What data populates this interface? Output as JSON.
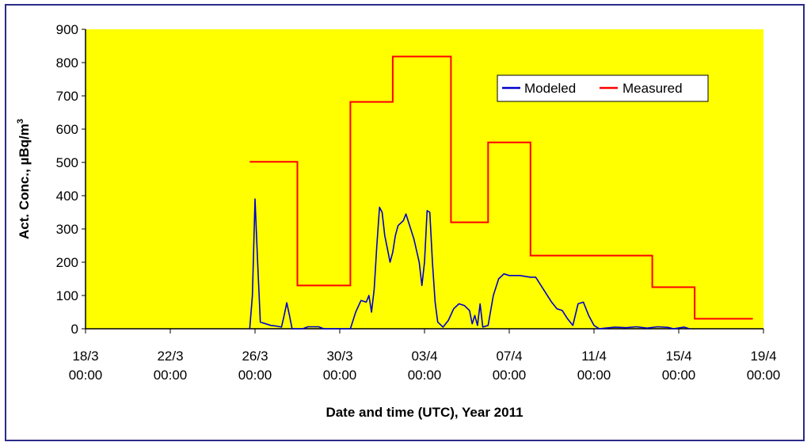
{
  "chart_data": {
    "type": "line",
    "title": "",
    "xlabel": "Date and time (UTC), Year 2011",
    "ylabel": "Act. Conc., µBq/m",
    "ylabel_superscript": "3",
    "ylim": [
      0,
      900
    ],
    "yticks": [
      0,
      100,
      200,
      300,
      400,
      500,
      600,
      700,
      800,
      900
    ],
    "xlim": [
      "2011-03-18 00:00",
      "2011-04-19 00:00"
    ],
    "xticks": [
      {
        "date": "2011-03-18",
        "line1": "18/3",
        "line2": "00:00"
      },
      {
        "date": "2011-03-22",
        "line1": "22/3",
        "line2": "00:00"
      },
      {
        "date": "2011-03-26",
        "line1": "26/3",
        "line2": "00:00"
      },
      {
        "date": "2011-03-30",
        "line1": "30/3",
        "line2": "00:00"
      },
      {
        "date": "2011-04-03",
        "line1": "03/4",
        "line2": "00:00"
      },
      {
        "date": "2011-04-07",
        "line1": "07/4",
        "line2": "00:00"
      },
      {
        "date": "2011-04-11",
        "line1": "11/4",
        "line2": "00:00"
      },
      {
        "date": "2011-04-15",
        "line1": "15/4",
        "line2": "00:00"
      },
      {
        "date": "2011-04-19",
        "line1": "19/4",
        "line2": "00:00"
      }
    ],
    "grid": false,
    "legend_position": "top-right",
    "plot_background": "#ffff00",
    "series": [
      {
        "name": "Modeled",
        "color": "#0000cc",
        "points": [
          [
            "2011-03-25 18:00",
            0
          ],
          [
            "2011-03-25 21:00",
            100
          ],
          [
            "2011-03-26 00:00",
            390
          ],
          [
            "2011-03-26 03:00",
            200
          ],
          [
            "2011-03-26 06:00",
            20
          ],
          [
            "2011-03-26 12:00",
            15
          ],
          [
            "2011-03-26 18:00",
            10
          ],
          [
            "2011-03-27 00:00",
            8
          ],
          [
            "2011-03-27 06:00",
            5
          ],
          [
            "2011-03-27 09:00",
            40
          ],
          [
            "2011-03-27 12:00",
            78
          ],
          [
            "2011-03-27 15:00",
            40
          ],
          [
            "2011-03-27 18:00",
            0
          ],
          [
            "2011-03-28 06:00",
            0
          ],
          [
            "2011-03-28 12:00",
            6
          ],
          [
            "2011-03-29 00:00",
            6
          ],
          [
            "2011-03-29 06:00",
            0
          ],
          [
            "2011-03-30 12:00",
            0
          ],
          [
            "2011-03-30 18:00",
            50
          ],
          [
            "2011-03-31 00:00",
            85
          ],
          [
            "2011-03-31 06:00",
            80
          ],
          [
            "2011-03-31 09:00",
            100
          ],
          [
            "2011-03-31 12:00",
            50
          ],
          [
            "2011-03-31 15:00",
            120
          ],
          [
            "2011-03-31 18:00",
            250
          ],
          [
            "2011-03-31 21:00",
            365
          ],
          [
            "2011-04-01 00:00",
            350
          ],
          [
            "2011-04-01 03:00",
            280
          ],
          [
            "2011-04-01 06:00",
            240
          ],
          [
            "2011-04-01 09:00",
            200
          ],
          [
            "2011-04-01 12:00",
            230
          ],
          [
            "2011-04-01 15:00",
            280
          ],
          [
            "2011-04-01 18:00",
            310
          ],
          [
            "2011-04-02 00:00",
            325
          ],
          [
            "2011-04-02 03:00",
            345
          ],
          [
            "2011-04-02 06:00",
            320
          ],
          [
            "2011-04-02 12:00",
            270
          ],
          [
            "2011-04-02 18:00",
            200
          ],
          [
            "2011-04-02 21:00",
            130
          ],
          [
            "2011-04-03 00:00",
            200
          ],
          [
            "2011-04-03 03:00",
            355
          ],
          [
            "2011-04-03 06:00",
            350
          ],
          [
            "2011-04-03 09:00",
            200
          ],
          [
            "2011-04-03 12:00",
            80
          ],
          [
            "2011-04-03 15:00",
            20
          ],
          [
            "2011-04-03 21:00",
            5
          ],
          [
            "2011-04-04 03:00",
            25
          ],
          [
            "2011-04-04 09:00",
            60
          ],
          [
            "2011-04-04 15:00",
            75
          ],
          [
            "2011-04-04 21:00",
            70
          ],
          [
            "2011-04-05 03:00",
            55
          ],
          [
            "2011-04-05 06:00",
            15
          ],
          [
            "2011-04-05 09:00",
            40
          ],
          [
            "2011-04-05 12:00",
            10
          ],
          [
            "2011-04-05 15:00",
            75
          ],
          [
            "2011-04-05 18:00",
            5
          ],
          [
            "2011-04-06 00:00",
            10
          ],
          [
            "2011-04-06 06:00",
            100
          ],
          [
            "2011-04-06 12:00",
            150
          ],
          [
            "2011-04-06 18:00",
            165
          ],
          [
            "2011-04-07 00:00",
            160
          ],
          [
            "2011-04-07 12:00",
            160
          ],
          [
            "2011-04-08 00:00",
            155
          ],
          [
            "2011-04-08 06:00",
            155
          ],
          [
            "2011-04-08 12:00",
            130
          ],
          [
            "2011-04-08 18:00",
            105
          ],
          [
            "2011-04-09 00:00",
            80
          ],
          [
            "2011-04-09 06:00",
            60
          ],
          [
            "2011-04-09 12:00",
            55
          ],
          [
            "2011-04-09 18:00",
            30
          ],
          [
            "2011-04-10 00:00",
            10
          ],
          [
            "2011-04-10 06:00",
            75
          ],
          [
            "2011-04-10 12:00",
            80
          ],
          [
            "2011-04-10 18:00",
            40
          ],
          [
            "2011-04-11 00:00",
            10
          ],
          [
            "2011-04-11 06:00",
            0
          ],
          [
            "2011-04-12 00:00",
            5
          ],
          [
            "2011-04-12 12:00",
            3
          ],
          [
            "2011-04-13 00:00",
            6
          ],
          [
            "2011-04-13 12:00",
            2
          ],
          [
            "2011-04-14 00:00",
            6
          ],
          [
            "2011-04-14 12:00",
            4
          ],
          [
            "2011-04-14 18:00",
            0
          ],
          [
            "2011-04-15 06:00",
            5
          ],
          [
            "2011-04-15 12:00",
            0
          ]
        ]
      },
      {
        "name": "Measured",
        "color": "#ff0000",
        "step_segments": [
          {
            "start": "2011-03-25 18:00",
            "end": "2011-03-28 00:00",
            "value": 502
          },
          {
            "start": "2011-03-28 00:00",
            "end": "2011-03-30 12:00",
            "value": 130
          },
          {
            "start": "2011-03-30 12:00",
            "end": "2011-04-01 12:00",
            "value": 682
          },
          {
            "start": "2011-04-01 12:00",
            "end": "2011-04-04 06:00",
            "value": 818
          },
          {
            "start": "2011-04-04 06:00",
            "end": "2011-04-06 00:00",
            "value": 320
          },
          {
            "start": "2011-04-06 00:00",
            "end": "2011-04-08 00:00",
            "value": 560
          },
          {
            "start": "2011-04-08 00:00",
            "end": "2011-04-13 18:00",
            "value": 220
          },
          {
            "start": "2011-04-13 18:00",
            "end": "2011-04-15 18:00",
            "value": 125
          },
          {
            "start": "2011-04-15 18:00",
            "end": "2011-04-18 12:00",
            "value": 30
          }
        ]
      }
    ]
  }
}
